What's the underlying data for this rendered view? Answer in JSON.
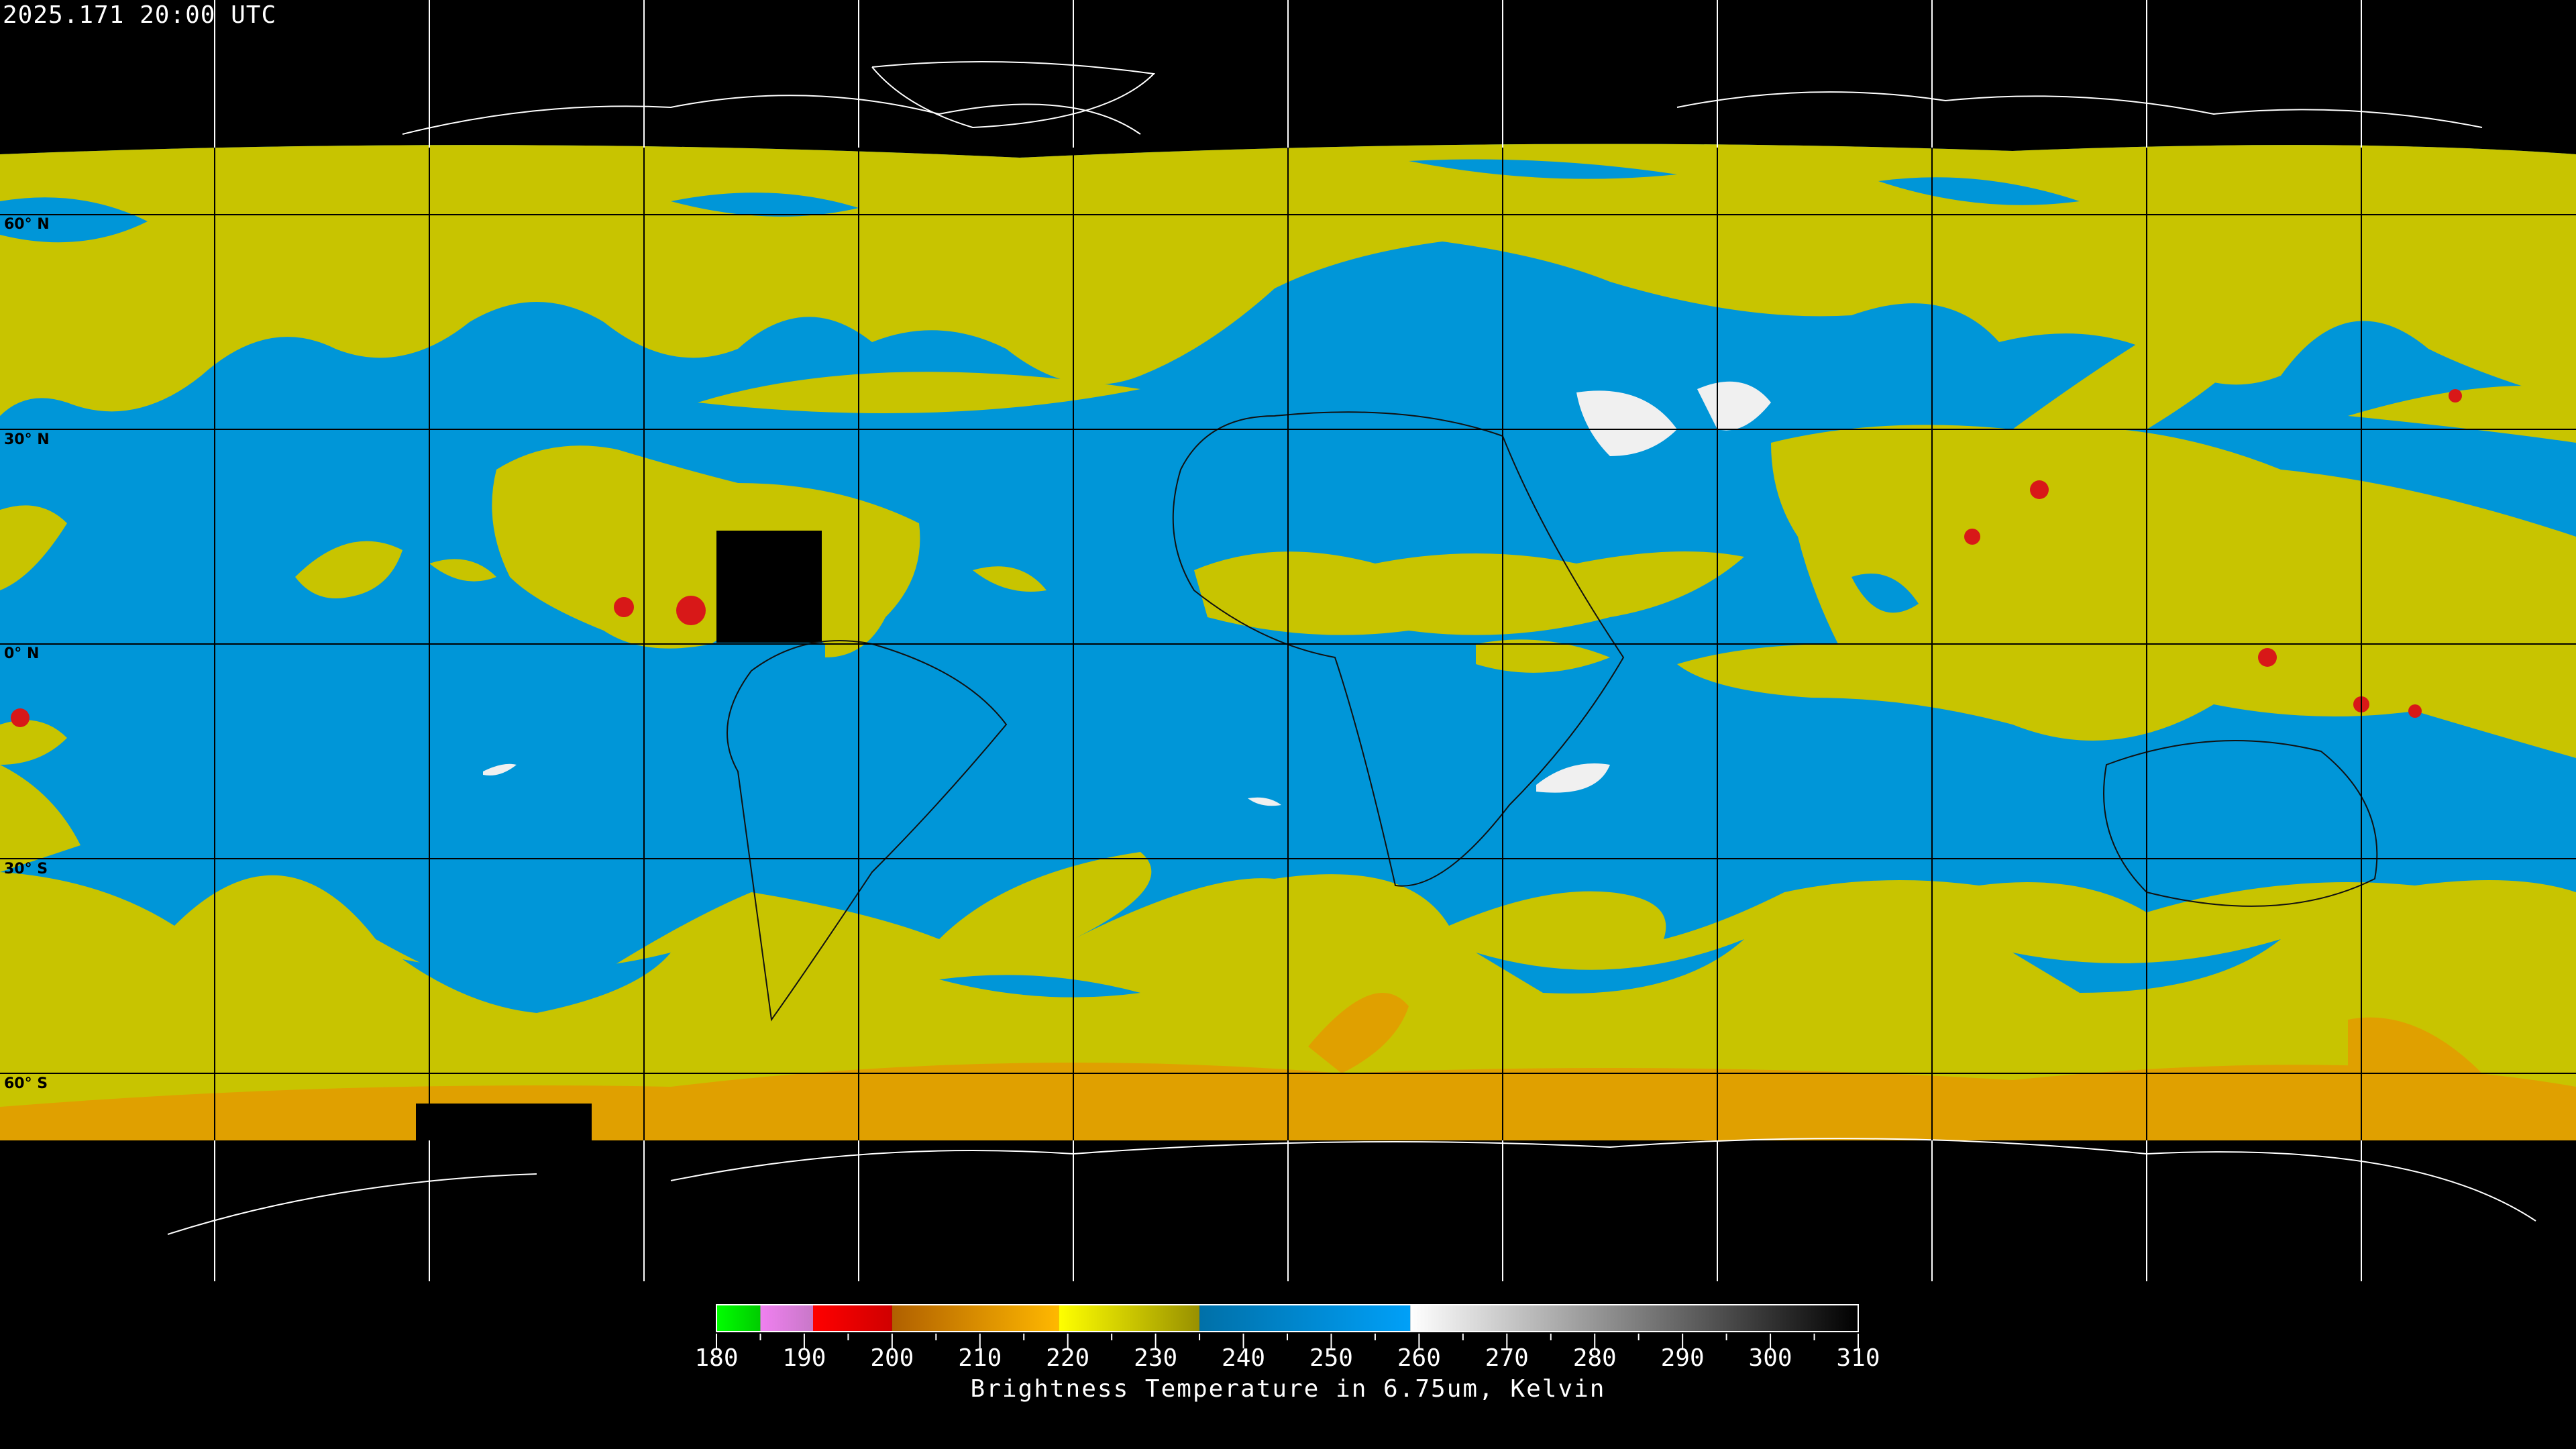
{
  "header": {
    "timestamp": "2025.171 20:00 UTC"
  },
  "map": {
    "latitude_labels": [
      "60° N",
      "30° N",
      "0° N",
      "30° S",
      "60° S"
    ],
    "colors": {
      "moist_high": "#c8c400",
      "dry": "#0096d8",
      "cold_tops": "#e0a000",
      "very_cold": "#d81818",
      "warm": "#f0f0f0",
      "no_data": "#000000"
    }
  },
  "colorbar": {
    "min": 180,
    "max": 310,
    "tick_labels": [
      "180",
      "190",
      "200",
      "210",
      "220",
      "230",
      "240",
      "250",
      "260",
      "270",
      "280",
      "290",
      "300",
      "310"
    ],
    "segments": [
      {
        "from": 180,
        "to": 185,
        "c0": "#00ff00",
        "c1": "#00cc00"
      },
      {
        "from": 185,
        "to": 191,
        "c0": "#f080f0",
        "c1": "#c878c8"
      },
      {
        "from": 191,
        "to": 200,
        "c0": "#ff0000",
        "c1": "#d00000"
      },
      {
        "from": 200,
        "to": 219,
        "c0": "#b06000",
        "c1": "#ffb800"
      },
      {
        "from": 219,
        "to": 235,
        "c0": "#ffff00",
        "c1": "#989000"
      },
      {
        "from": 235,
        "to": 259,
        "c0": "#0070a8",
        "c1": "#00a0f8"
      },
      {
        "from": 259,
        "to": 310,
        "c0": "#ffffff",
        "c1": "#000000"
      }
    ],
    "caption": "Brightness Temperature in 6.75um, Kelvin"
  }
}
